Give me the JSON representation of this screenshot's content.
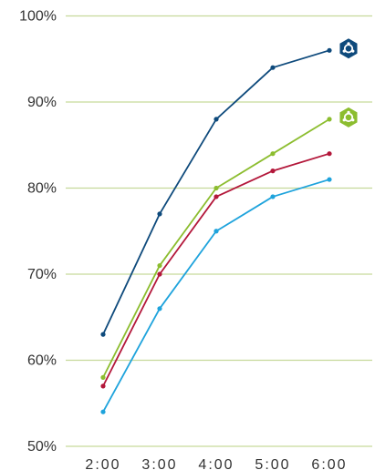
{
  "chart_data": {
    "type": "line",
    "title": "",
    "xlabel": "",
    "ylabel": "",
    "categories": [
      "2:00",
      "3:00",
      "4:00",
      "5:00",
      "6:00"
    ],
    "ylim": [
      50,
      100
    ],
    "yticks": [
      50,
      60,
      70,
      80,
      90,
      100
    ],
    "ytick_labels": [
      "50%",
      "60%",
      "70%",
      "80%",
      "90%",
      "100%"
    ],
    "grid": true,
    "legend": "none",
    "series": [
      {
        "values": [
          63,
          77,
          88,
          94,
          96
        ],
        "color": "#0e4a7c",
        "end_marker": "hexagon-badge"
      },
      {
        "values": [
          58,
          71,
          80,
          84,
          88
        ],
        "color": "#8cbd2f",
        "end_marker": "hexagon-badge"
      },
      {
        "values": [
          57,
          70,
          79,
          82,
          84
        ],
        "color": "#b3173a"
      },
      {
        "values": [
          54,
          66,
          75,
          79,
          81
        ],
        "color": "#1ea3dc"
      }
    ]
  }
}
